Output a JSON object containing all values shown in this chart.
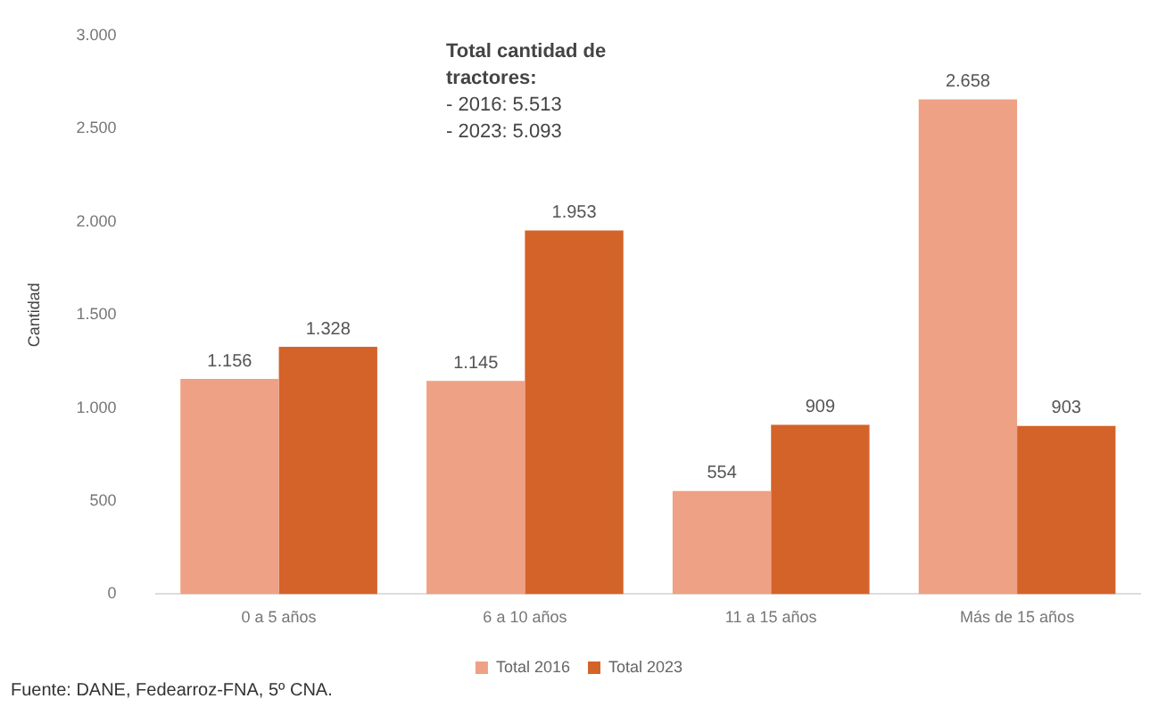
{
  "chart_data": {
    "type": "bar",
    "ylabel": "Cantidad",
    "categories": [
      "0 a 5 años",
      "6 a 10 años",
      "11 a 15 años",
      "Más de 15 años"
    ],
    "series": [
      {
        "name": "Total 2016",
        "color": "#eea184",
        "values": [
          1156,
          1145,
          554,
          2658
        ],
        "value_labels": [
          "1.156",
          "1.145",
          "554",
          "2.658"
        ]
      },
      {
        "name": "Total 2023",
        "color": "#d4632a",
        "values": [
          1328,
          1953,
          909,
          903
        ],
        "value_labels": [
          "1.328",
          "1.953",
          "909",
          "903"
        ]
      }
    ],
    "ylim": [
      0,
      3000
    ],
    "yticks": [
      {
        "value": 0,
        "label": "0"
      },
      {
        "value": 500,
        "label": "500"
      },
      {
        "value": 1000,
        "label": "1.000"
      },
      {
        "value": 1500,
        "label": "1.500"
      },
      {
        "value": 2000,
        "label": "2.000"
      },
      {
        "value": 2500,
        "label": "2.500"
      },
      {
        "value": 3000,
        "label": "3.000"
      }
    ],
    "grid": false,
    "legend": "bottom",
    "annotations": [
      "Total cantidad de tractores:",
      "- 2016: 5.513",
      "- 2023: 5.093",
      "Fuente: DANE, Fedearroz-FNA, 5º CNA."
    ]
  }
}
